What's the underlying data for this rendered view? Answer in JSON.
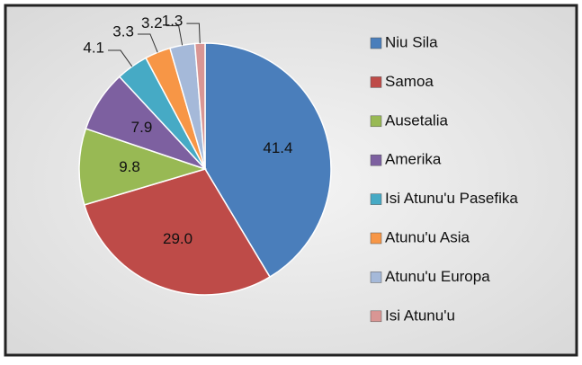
{
  "chart_data": {
    "type": "pie",
    "categories": [
      "Niu Sila",
      "Samoa",
      "Ausetalia",
      "Amerika",
      "Isi Atunu'u Pasefika",
      "Atunu'u Asia",
      "Atunu'u Europa",
      "Isi Atunu'u"
    ],
    "values": [
      41.4,
      29.0,
      9.8,
      7.9,
      4.1,
      3.3,
      3.2,
      1.3
    ],
    "value_labels": [
      "41.4",
      "29.0",
      "9.8",
      "7.9",
      "4.1",
      "3.3",
      "3.2",
      "1.3"
    ],
    "colors": [
      "#4a7ebb",
      "#be4b48",
      "#98b954",
      "#7d60a0",
      "#46aac5",
      "#f79646",
      "#a5b9d9",
      "#d99694"
    ],
    "legend": "right"
  }
}
